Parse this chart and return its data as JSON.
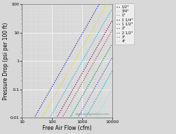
{
  "title": "",
  "xlabel": "Free Air Flow (cfm)",
  "ylabel": "Pressure Drop (psi per 100 ft)",
  "xlim": [
    10,
    10000
  ],
  "ylim": [
    0.01,
    100
  ],
  "watermark": "engineeringtoolbox.com",
  "legend_labels": [
    "1/2\"",
    "3/4\"",
    "1\"",
    "1 1/4\"",
    "1 1/2\"",
    "2\"",
    "2 1/2\"",
    "3\"",
    "4\""
  ],
  "line_colors": [
    "#2020aa",
    "#dddd00",
    "#00bbcc",
    "#880055",
    "#994444",
    "#008855",
    "#3355cc",
    "#00aacc",
    "#88ddee"
  ],
  "pipe_offsets": [
    0.0,
    0.48,
    0.96,
    1.38,
    1.72,
    2.2,
    2.68,
    3.16,
    3.8
  ],
  "slope": 1.85,
  "base_intercept": -4.6,
  "background_color": "#d8d8d8",
  "grid_major_color": "#ffffff",
  "grid_minor_color": "#e8e8e8",
  "tick_label_size": 4.5,
  "axis_label_size": 5.5,
  "line_width": 0.9,
  "legend_fontsize": 3.8
}
